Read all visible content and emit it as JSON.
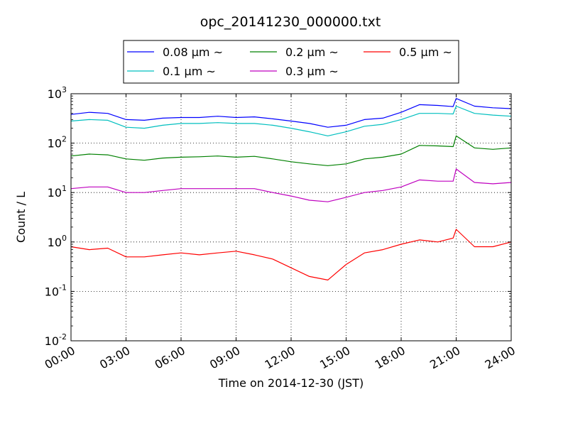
{
  "chart_data": {
    "type": "line",
    "title": "opc_20141230_000000.txt",
    "xlabel": "Time on 2014-12-30 (JST)",
    "ylabel": "Count / L",
    "yscale": "log",
    "ylim": [
      0.01,
      1000
    ],
    "xlim": [
      "00:00",
      "24:00"
    ],
    "x_tick_labels": [
      "00:00",
      "03:00",
      "06:00",
      "09:00",
      "12:00",
      "15:00",
      "18:00",
      "21:00",
      "24:00"
    ],
    "y_ticks": [
      {
        "base": "10",
        "exp": "-2"
      },
      {
        "base": "10",
        "exp": "-1"
      },
      {
        "base": "10",
        "exp": "0"
      },
      {
        "base": "10",
        "exp": "1"
      },
      {
        "base": "10",
        "exp": "2"
      },
      {
        "base": "10",
        "exp": "3"
      }
    ],
    "grid": true,
    "legend_position": "top",
    "x": [
      "00:00",
      "01:00",
      "02:00",
      "03:00",
      "04:00",
      "05:00",
      "06:00",
      "07:00",
      "08:00",
      "09:00",
      "10:00",
      "11:00",
      "12:00",
      "13:00",
      "14:00",
      "15:00",
      "16:00",
      "17:00",
      "18:00",
      "19:00",
      "20:00",
      "20:50",
      "21:00",
      "22:00",
      "23:00",
      "24:00"
    ],
    "series": [
      {
        "name": "0.08 µm ~",
        "color": "#0000ff",
        "values": [
          380,
          420,
          400,
          300,
          290,
          320,
          330,
          330,
          350,
          330,
          340,
          310,
          280,
          250,
          210,
          230,
          300,
          320,
          420,
          600,
          580,
          550,
          800,
          560,
          520,
          500
        ]
      },
      {
        "name": "0.1 µm ~",
        "color": "#00bfbf",
        "values": [
          280,
          300,
          290,
          210,
          200,
          230,
          250,
          250,
          260,
          250,
          250,
          230,
          200,
          170,
          140,
          170,
          220,
          240,
          300,
          400,
          400,
          390,
          560,
          400,
          370,
          350
        ]
      },
      {
        "name": "0.2 µm ~",
        "color": "#008000",
        "values": [
          55,
          60,
          58,
          48,
          45,
          50,
          52,
          53,
          55,
          52,
          54,
          48,
          42,
          38,
          35,
          38,
          48,
          52,
          60,
          90,
          88,
          85,
          140,
          80,
          75,
          80
        ]
      },
      {
        "name": "0.3 µm ~",
        "color": "#bf00bf",
        "values": [
          12,
          13,
          13,
          10,
          10,
          11,
          12,
          12,
          12,
          12,
          12,
          10,
          8.5,
          7,
          6.5,
          8,
          10,
          11,
          13,
          18,
          17,
          17,
          30,
          16,
          15,
          16
        ]
      },
      {
        "name": "0.5 µm ~",
        "color": "#ff0000",
        "values": [
          0.8,
          0.7,
          0.75,
          0.5,
          0.5,
          0.55,
          0.6,
          0.55,
          0.6,
          0.65,
          0.55,
          0.45,
          0.3,
          0.2,
          0.17,
          0.35,
          0.6,
          0.7,
          0.9,
          1.1,
          1.0,
          1.2,
          1.8,
          0.8,
          0.8,
          1.0
        ]
      }
    ]
  }
}
